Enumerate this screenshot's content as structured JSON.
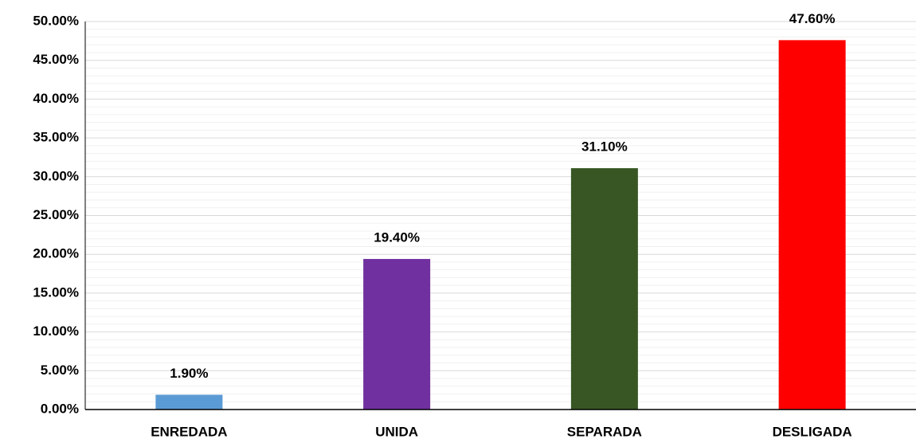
{
  "chart_data": {
    "type": "bar",
    "categories": [
      "ENREDADA",
      "UNIDA",
      "SEPARADA",
      "DESLIGADA"
    ],
    "values": [
      1.9,
      19.4,
      31.1,
      47.6
    ],
    "value_labels": [
      "1.90%",
      "19.40%",
      "31.10%",
      "47.60%"
    ],
    "colors": [
      "#5b9bd5",
      "#7030a0",
      "#375623",
      "#ff0000"
    ],
    "ylim": [
      0,
      50
    ],
    "yticks": [
      {
        "value": 0,
        "label": "0.00%"
      },
      {
        "value": 5,
        "label": "5.00%"
      },
      {
        "value": 10,
        "label": "10.00%"
      },
      {
        "value": 15,
        "label": "15.00%"
      },
      {
        "value": 20,
        "label": "20.00%"
      },
      {
        "value": 25,
        "label": "25.00%"
      },
      {
        "value": 30,
        "label": "30.00%"
      },
      {
        "value": 35,
        "label": "35.00%"
      },
      {
        "value": 40,
        "label": "40.00%"
      },
      {
        "value": 45,
        "label": "45.00%"
      },
      {
        "value": 50,
        "label": "50.00%"
      }
    ],
    "grid": true,
    "minor_grid_divisions": 5
  }
}
